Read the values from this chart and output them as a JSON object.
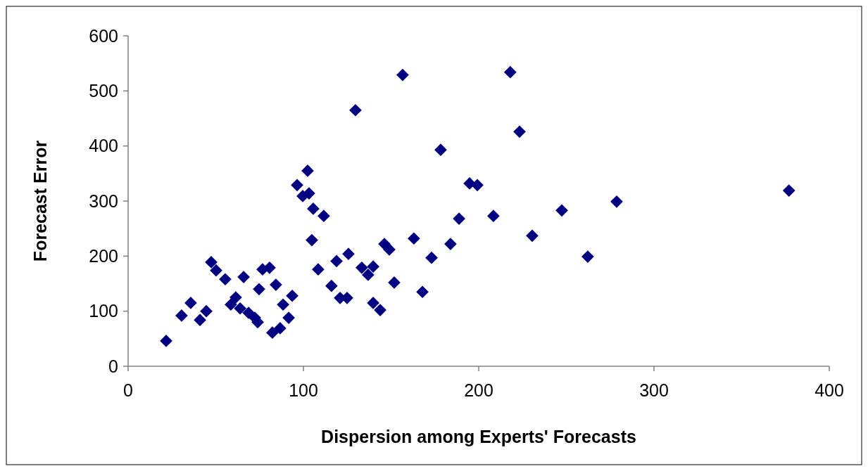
{
  "chart_data": {
    "type": "scatter",
    "xlabel": "Dispersion among Experts' Forecasts",
    "ylabel": "Forecast Error",
    "xlim": [
      0,
      400
    ],
    "xticks": [
      0,
      100,
      200,
      300,
      400
    ],
    "ylim": [
      0,
      600
    ],
    "yticks": [
      0,
      100,
      200,
      300,
      400,
      500,
      600
    ],
    "marker": "diamond",
    "grid": false,
    "series": [
      {
        "color": "#000080",
        "x": [
          21.7,
          30.5,
          35.7,
          41,
          44.6,
          47.4,
          50.2,
          55.4,
          58.6,
          61.4,
          63.9,
          65.9,
          68.7,
          72.3,
          73.9,
          74.7,
          76.7,
          80.7,
          82.3,
          86.7,
          84.3,
          88.4,
          91.6,
          93.6,
          96.4,
          99.6,
          102.4,
          103.2,
          105.6,
          104.8,
          108.4,
          111.6,
          116,
          118.9,
          120.9,
          124.9,
          125.7,
          129.7,
          133.3,
          136.9,
          139.8,
          139.8,
          143.8,
          146.2,
          149,
          151.8,
          156.6,
          163,
          167.9,
          173.1,
          178.3,
          183.9,
          188.8,
          194.8,
          199.2,
          208.4,
          218,
          223.3,
          230.5,
          247.4,
          262.2,
          278.7,
          377
        ],
        "values": [
          46,
          92,
          115,
          84,
          100,
          189,
          174,
          158,
          112,
          125,
          105,
          162,
          97,
          88,
          80,
          140,
          176,
          179,
          61,
          69,
          148,
          112,
          88,
          128,
          329,
          309,
          355,
          314,
          286,
          229,
          176,
          273,
          146,
          191,
          124,
          124,
          204,
          465,
          179,
          166,
          181,
          115,
          102,
          222,
          212,
          152,
          529,
          232,
          135,
          197,
          393,
          222,
          268,
          332,
          329,
          273,
          534,
          426,
          237,
          283,
          199,
          299,
          319
        ]
      }
    ]
  }
}
